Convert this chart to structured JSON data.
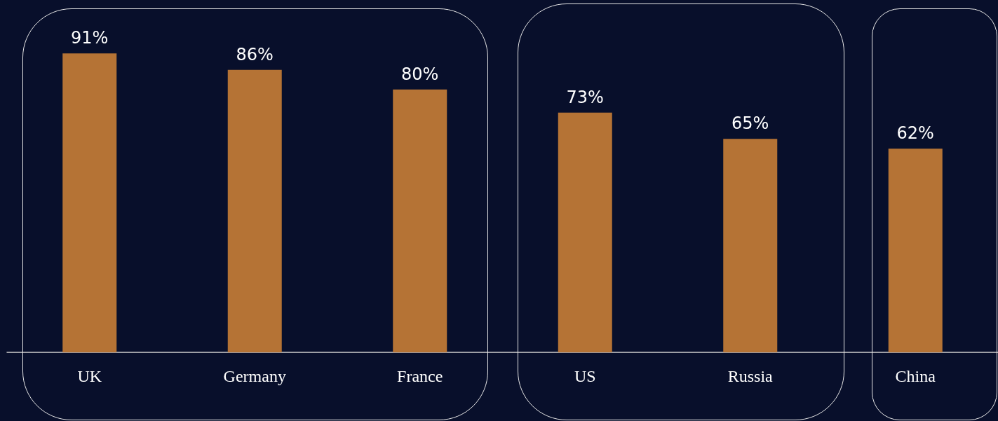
{
  "chart_data": {
    "type": "bar",
    "categories": [
      "UK",
      "Germany",
      "France",
      "US",
      "Russia",
      "China"
    ],
    "values": [
      91,
      86,
      80,
      73,
      65,
      62
    ],
    "color": "#b57335",
    "value_labels": [
      "91%",
      "86%",
      "80%",
      "73%",
      "65%",
      "62%"
    ]
  }
}
